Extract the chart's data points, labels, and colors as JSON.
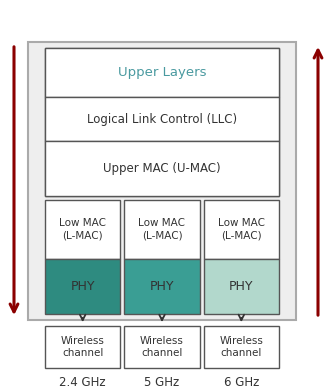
{
  "bg_color": "#ffffff",
  "outer_box_facecolor": "#eeeeee",
  "outer_box_edgecolor": "#aaaaaa",
  "white_box_facecolor": "#ffffff",
  "white_box_edgecolor": "#555555",
  "upper_layers_text": "Upper Layers",
  "upper_layers_color": "#4a9aa0",
  "llc_text": "Logical Link Control (LLC)",
  "umac_text": "Upper MAC (U-MAC)",
  "lmac_text": "Low MAC\n(L-MAC)",
  "phy_text": "PHY",
  "phy_colors": [
    "#2e8b80",
    "#3a9e94",
    "#b2d8cc"
  ],
  "wireless_text": "Wireless\nchannel",
  "freq_labels": [
    "2.4 GHz",
    "5 GHz",
    "6 GHz"
  ],
  "arrow_color": "#8b0000",
  "text_color": "#333333",
  "fig_w": 3.32,
  "fig_h": 3.9,
  "dpi": 100
}
